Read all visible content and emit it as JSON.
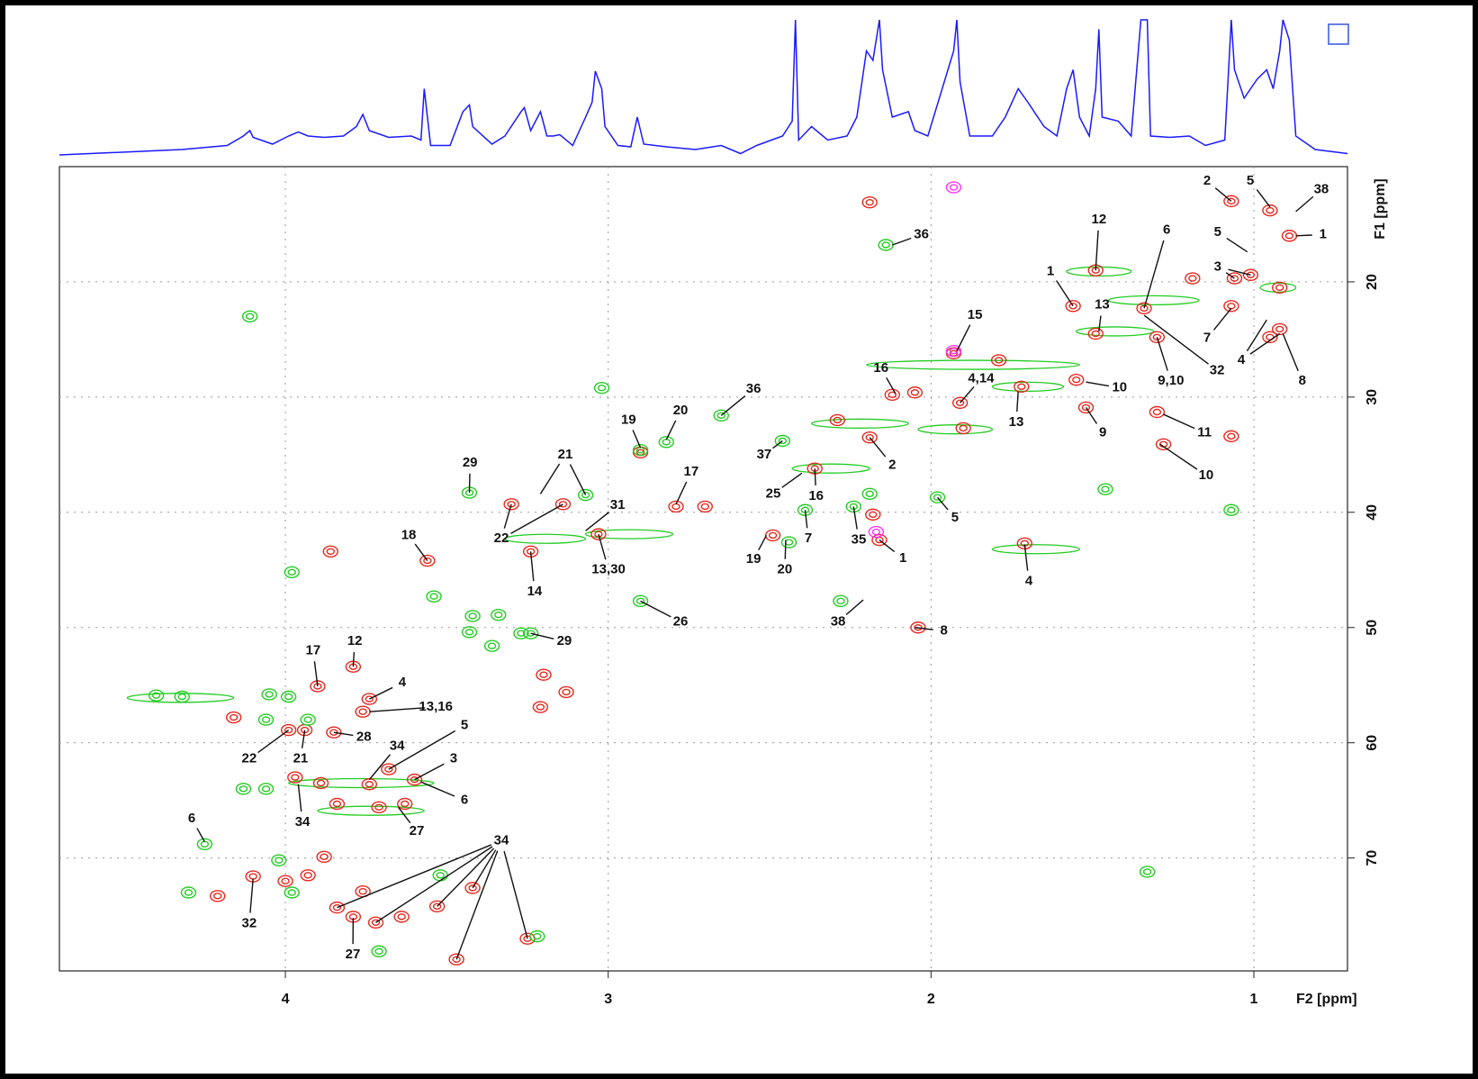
{
  "chart_data": {
    "type": "hsqc",
    "xlabel": "F2 [ppm]",
    "ylabel": "F1 [ppm]",
    "xlim": [
      4.7,
      0.71
    ],
    "ylim": [
      10,
      79.8
    ],
    "xticks": [
      4,
      3,
      2,
      1
    ],
    "yticks": [
      20,
      30,
      40,
      50,
      60,
      70
    ],
    "grid": true,
    "projection": {
      "color": "#1a1aff",
      "ylim": [
        0,
        100
      ],
      "x": [
        4.7,
        4.32,
        4.18,
        4.13,
        4.11,
        4.1,
        4.04,
        3.99,
        3.96,
        3.93,
        3.88,
        3.82,
        3.78,
        3.76,
        3.74,
        3.68,
        3.61,
        3.58,
        3.57,
        3.55,
        3.49,
        3.45,
        3.43,
        3.42,
        3.36,
        3.32,
        3.27,
        3.26,
        3.24,
        3.21,
        3.19,
        3.17,
        3.15,
        3.11,
        3.07,
        3.05,
        3.04,
        3.02,
        3.01,
        2.97,
        2.93,
        2.91,
        2.89,
        2.82,
        2.73,
        2.65,
        2.59,
        2.54,
        2.46,
        2.43,
        2.42,
        2.41,
        2.37,
        2.32,
        2.26,
        2.23,
        2.2,
        2.18,
        2.16,
        2.15,
        2.12,
        2.07,
        2.05,
        2.01,
        1.93,
        1.92,
        1.91,
        1.88,
        1.81,
        1.77,
        1.73,
        1.7,
        1.65,
        1.61,
        1.58,
        1.56,
        1.54,
        1.51,
        1.49,
        1.48,
        1.47,
        1.42,
        1.38,
        1.35,
        1.33,
        1.32,
        1.26,
        1.2,
        1.15,
        1.09,
        1.07,
        1.06,
        1.03,
        0.99,
        0.96,
        0.94,
        0.92,
        0.91,
        0.89,
        0.87,
        0.81,
        0.71
      ],
      "values": [
        0,
        4,
        7,
        14,
        18,
        13,
        8,
        14,
        17,
        14,
        13,
        14,
        21,
        30,
        18,
        13,
        14,
        11,
        49,
        7,
        7,
        32,
        37,
        21,
        8,
        14,
        32,
        35,
        18,
        32,
        14,
        14,
        15,
        7,
        28,
        39,
        62,
        49,
        21,
        7,
        6,
        28,
        8,
        6,
        4,
        7,
        1,
        7,
        14,
        25,
        100,
        11,
        21,
        11,
        14,
        28,
        77,
        70,
        100,
        63,
        28,
        32,
        18,
        14,
        77,
        100,
        54,
        14,
        14,
        28,
        49,
        39,
        21,
        14,
        49,
        63,
        28,
        14,
        49,
        93,
        28,
        25,
        14,
        100,
        100,
        14,
        13,
        14,
        7,
        11,
        100,
        63,
        42,
        56,
        63,
        49,
        77,
        100,
        85,
        14,
        4,
        1
      ]
    },
    "series": [
      {
        "color": "#e8261c",
        "x": [
          1.07,
          0.95,
          0.89,
          1.06,
          1.01,
          1.07,
          0.92,
          0.95,
          0.92,
          1.56,
          1.49,
          1.49,
          1.34,
          1.3,
          1.55,
          1.72,
          1.52,
          1.3,
          1.28,
          1.93,
          1.91,
          1.9,
          1.79,
          2.12,
          2.05,
          2.19,
          2.29,
          2.18,
          2.16,
          1.71,
          2.04,
          2.36,
          2.49,
          3.03,
          3.24,
          3.3,
          3.14,
          2.9,
          2.79,
          2.7,
          3.56,
          3.86,
          3.2,
          3.13,
          3.21,
          3.79,
          3.9,
          3.74,
          3.76,
          4.16,
          3.99,
          3.94,
          3.85,
          3.68,
          3.6,
          3.97,
          3.89,
          3.74,
          3.84,
          3.71,
          3.63,
          4.1,
          4.0,
          3.93,
          3.88,
          3.84,
          3.79,
          3.72,
          3.64,
          3.53,
          3.42,
          3.25,
          3.47,
          4.21,
          3.76,
          2.19,
          1.07,
          1.19
        ],
        "values": [
          13.0,
          13.8,
          16.0,
          19.7,
          19.4,
          22.1,
          20.5,
          24.8,
          24.1,
          22.1,
          19.0,
          24.5,
          22.3,
          24.8,
          28.5,
          29.1,
          30.9,
          31.3,
          34.1,
          26.2,
          30.5,
          32.7,
          26.8,
          29.8,
          29.6,
          33.5,
          32.0,
          40.2,
          42.4,
          42.7,
          50.0,
          36.2,
          42.0,
          41.9,
          43.4,
          39.3,
          39.3,
          34.8,
          39.5,
          39.5,
          44.2,
          43.4,
          54.1,
          55.6,
          56.9,
          53.4,
          55.1,
          56.2,
          57.3,
          57.8,
          58.9,
          58.9,
          59.1,
          62.3,
          63.2,
          63.0,
          63.5,
          63.6,
          65.3,
          65.6,
          65.3,
          71.6,
          72.0,
          71.5,
          69.9,
          74.3,
          75.1,
          75.6,
          75.1,
          74.2,
          72.6,
          77.0,
          78.8,
          73.3,
          72.9,
          13.1,
          33.4,
          19.7
        ]
      },
      {
        "color": "#22cc22",
        "x": [
          2.14,
          4.11,
          3.02,
          2.82,
          2.65,
          2.46,
          3.43,
          3.07,
          2.39,
          2.24,
          2.19,
          1.98,
          1.46,
          2.9,
          2.44,
          2.28,
          3.98,
          3.54,
          3.42,
          3.34,
          3.43,
          3.27,
          3.36,
          4.05,
          3.99,
          4.4,
          4.32,
          4.06,
          3.93,
          4.13,
          4.06,
          4.25,
          4.3,
          3.98,
          4.02,
          3.52,
          3.22,
          3.71,
          1.33,
          1.07,
          2.9,
          3.24
        ],
        "values": [
          16.8,
          23.0,
          29.2,
          33.9,
          31.6,
          33.8,
          38.3,
          38.5,
          39.8,
          39.5,
          38.4,
          38.7,
          38.0,
          47.7,
          42.6,
          47.7,
          45.2,
          47.3,
          49.0,
          48.9,
          50.4,
          50.5,
          51.6,
          55.8,
          56.0,
          55.9,
          56.0,
          58.0,
          58.0,
          64.0,
          64.0,
          68.8,
          73.0,
          73.0,
          70.2,
          71.5,
          76.8,
          78.1,
          71.2,
          39.8,
          34.6,
          50.5
        ]
      },
      {
        "color": "#ff33ff",
        "x": [
          1.93,
          1.93,
          2.17
        ],
        "values": [
          11.8,
          26.0,
          41.7
        ]
      }
    ],
    "streaks": {
      "color": "#22cc22",
      "x0": [
        3.07,
        3.32,
        2.43,
        1.81,
        1.58,
        1.55,
        1.45,
        2.2,
        1.81,
        4.49,
        3.99,
        3.9,
        2.04,
        2.37,
        0.98
      ],
      "x1": [
        2.8,
        3.07,
        2.19,
        1.59,
        1.38,
        1.31,
        1.17,
        1.54,
        1.54,
        4.16,
        3.54,
        3.57,
        1.81,
        2.07,
        0.87
      ],
      "y": [
        41.9,
        42.3,
        36.2,
        29.1,
        19.1,
        24.3,
        21.6,
        27.2,
        43.2,
        56.1,
        63.5,
        65.9,
        32.8,
        32.3,
        20.5
      ]
    },
    "annotations": [
      {
        "text": "2",
        "x": 1.145,
        "y": 11.25,
        "to": [
          [
            1.07,
            13.0
          ]
        ]
      },
      {
        "text": "5",
        "x": 1.011,
        "y": 11.25,
        "to": [
          [
            0.95,
            13.5
          ]
        ]
      },
      {
        "text": "38",
        "x": 0.791,
        "y": 12.0,
        "to": [
          [
            0.87,
            13.9
          ]
        ]
      },
      {
        "text": "1",
        "x": 0.786,
        "y": 15.9,
        "to": [
          [
            0.87,
            16.0
          ]
        ]
      },
      {
        "text": "5",
        "x": 1.112,
        "y": 15.7,
        "to": [
          [
            1.02,
            17.4
          ]
        ]
      },
      {
        "text": "3",
        "x": 1.112,
        "y": 18.7,
        "to": [
          [
            1.06,
            19.7
          ],
          [
            1.01,
            19.4
          ]
        ]
      },
      {
        "text": "7",
        "x": 1.145,
        "y": 24.9,
        "to": [
          [
            1.07,
            22.3
          ]
        ]
      },
      {
        "text": "4",
        "x": 1.039,
        "y": 26.8,
        "to": [
          [
            0.96,
            23.3
          ],
          [
            0.92,
            24.5
          ]
        ]
      },
      {
        "text": "8",
        "x": 0.85,
        "y": 28.6,
        "to": [
          [
            0.91,
            24.5
          ]
        ]
      },
      {
        "text": "12",
        "x": 1.48,
        "y": 14.6,
        "to": [
          [
            1.49,
            19.0
          ]
        ]
      },
      {
        "text": "6",
        "x": 1.27,
        "y": 15.5,
        "to": [
          [
            1.34,
            22.3
          ]
        ]
      },
      {
        "text": "1",
        "x": 1.63,
        "y": 19.1,
        "to": [
          [
            1.56,
            22.1
          ]
        ]
      },
      {
        "text": "13",
        "x": 1.47,
        "y": 22.0,
        "to": [
          [
            1.48,
            24.3
          ]
        ]
      },
      {
        "text": "32",
        "x": 1.114,
        "y": 27.7,
        "to": [
          [
            1.34,
            22.9
          ]
        ]
      },
      {
        "text": "9,10",
        "x": 1.257,
        "y": 28.6,
        "to": [
          [
            1.3,
            24.8
          ]
        ]
      },
      {
        "text": "10",
        "x": 1.416,
        "y": 29.2,
        "to": [
          [
            1.52,
            28.7
          ]
        ]
      },
      {
        "text": "13",
        "x": 1.736,
        "y": 32.2,
        "to": [
          [
            1.73,
            29.5
          ]
        ]
      },
      {
        "text": "9",
        "x": 1.468,
        "y": 33.1,
        "to": [
          [
            1.52,
            30.9
          ]
        ]
      },
      {
        "text": "11",
        "x": 1.153,
        "y": 33.1,
        "to": [
          [
            1.28,
            31.5
          ]
        ]
      },
      {
        "text": "10",
        "x": 1.148,
        "y": 36.8,
        "to": [
          [
            1.29,
            34.1
          ]
        ]
      },
      {
        "text": "15",
        "x": 1.864,
        "y": 22.9,
        "to": [
          [
            1.92,
            26.0
          ]
        ]
      },
      {
        "text": "4,14",
        "x": 1.845,
        "y": 28.4,
        "to": [
          [
            1.91,
            30.5
          ]
        ]
      },
      {
        "text": "36",
        "x": 2.03,
        "y": 15.9,
        "to": [
          [
            2.12,
            16.8
          ]
        ]
      },
      {
        "text": "16",
        "x": 2.155,
        "y": 27.5,
        "to": [
          [
            2.11,
            29.7
          ]
        ]
      },
      {
        "text": "2",
        "x": 2.12,
        "y": 35.9,
        "to": [
          [
            2.19,
            33.5
          ]
        ]
      },
      {
        "text": "5",
        "x": 1.926,
        "y": 40.5,
        "to": [
          [
            1.98,
            38.7
          ]
        ]
      },
      {
        "text": "1",
        "x": 2.087,
        "y": 44.0,
        "to": [
          [
            2.16,
            42.4
          ]
        ]
      },
      {
        "text": "35",
        "x": 2.224,
        "y": 42.4,
        "to": [
          [
            2.24,
            39.5
          ]
        ]
      },
      {
        "text": "8",
        "x": 1.96,
        "y": 50.3,
        "to": [
          [
            2.05,
            50.0
          ]
        ]
      },
      {
        "text": "4",
        "x": 1.697,
        "y": 46.0,
        "to": [
          [
            1.71,
            42.8
          ]
        ]
      },
      {
        "text": "38",
        "x": 2.288,
        "y": 49.5,
        "to": [
          [
            2.21,
            47.6
          ]
        ]
      },
      {
        "text": "37",
        "x": 2.517,
        "y": 35.0,
        "to": [
          [
            2.46,
            33.8
          ]
        ]
      },
      {
        "text": "25",
        "x": 2.489,
        "y": 38.4,
        "to": [
          [
            2.4,
            36.6
          ]
        ]
      },
      {
        "text": "16",
        "x": 2.356,
        "y": 38.6,
        "to": [
          [
            2.36,
            36.2
          ]
        ]
      },
      {
        "text": "7",
        "x": 2.38,
        "y": 42.3,
        "to": [
          [
            2.39,
            39.8
          ]
        ]
      },
      {
        "text": "19",
        "x": 2.55,
        "y": 44.1,
        "to": [
          [
            2.51,
            42.0
          ]
        ]
      },
      {
        "text": "20",
        "x": 2.453,
        "y": 45.0,
        "to": [
          [
            2.45,
            42.4
          ]
        ]
      },
      {
        "text": "36",
        "x": 2.55,
        "y": 29.3,
        "to": [
          [
            2.65,
            31.6
          ]
        ]
      },
      {
        "text": "19",
        "x": 2.937,
        "y": 32.0,
        "to": [
          [
            2.9,
            34.4
          ]
        ]
      },
      {
        "text": "20",
        "x": 2.776,
        "y": 31.2,
        "to": [
          [
            2.82,
            33.7
          ]
        ]
      },
      {
        "text": "17",
        "x": 2.743,
        "y": 36.5,
        "to": [
          [
            2.79,
            39.3
          ]
        ]
      },
      {
        "text": "21",
        "x": 3.133,
        "y": 35.0,
        "to": [
          [
            3.21,
            38.4
          ],
          [
            3.07,
            38.5
          ]
        ]
      },
      {
        "text": "22",
        "x": 3.331,
        "y": 42.3,
        "to": [
          [
            3.3,
            39.3
          ],
          [
            3.14,
            39.3
          ]
        ]
      },
      {
        "text": "31",
        "x": 2.971,
        "y": 39.4,
        "to": [
          [
            3.07,
            41.6
          ]
        ]
      },
      {
        "text": "13,30",
        "x": 2.999,
        "y": 45.0,
        "to": [
          [
            3.03,
            41.9
          ]
        ]
      },
      {
        "text": "14",
        "x": 3.228,
        "y": 46.9,
        "to": [
          [
            3.24,
            43.4
          ]
        ]
      },
      {
        "text": "29",
        "x": 3.428,
        "y": 35.7,
        "to": [
          [
            3.43,
            38.3
          ]
        ]
      },
      {
        "text": "18",
        "x": 3.618,
        "y": 42.0,
        "to": [
          [
            3.56,
            44.2
          ]
        ]
      },
      {
        "text": "26",
        "x": 2.776,
        "y": 49.5,
        "to": [
          [
            2.9,
            47.7
          ]
        ]
      },
      {
        "text": "29",
        "x": 3.136,
        "y": 51.2,
        "to": [
          [
            3.24,
            50.5
          ]
        ]
      },
      {
        "text": "17",
        "x": 3.914,
        "y": 52.0,
        "to": [
          [
            3.9,
            55.1
          ]
        ]
      },
      {
        "text": "12",
        "x": 3.785,
        "y": 51.2,
        "to": [
          [
            3.79,
            53.4
          ]
        ]
      },
      {
        "text": "4",
        "x": 3.638,
        "y": 54.8,
        "to": [
          [
            3.74,
            56.2
          ]
        ]
      },
      {
        "text": "13,16",
        "x": 3.534,
        "y": 56.9,
        "to": [
          [
            3.74,
            57.3
          ]
        ]
      },
      {
        "text": "22",
        "x": 4.112,
        "y": 61.4,
        "to": [
          [
            3.99,
            58.9
          ]
        ]
      },
      {
        "text": "21",
        "x": 3.953,
        "y": 61.4,
        "to": [
          [
            3.94,
            58.9
          ]
        ]
      },
      {
        "text": "28",
        "x": 3.757,
        "y": 59.5,
        "to": [
          [
            3.85,
            59.1
          ]
        ]
      },
      {
        "text": "34",
        "x": 3.654,
        "y": 60.3,
        "to": [
          [
            3.74,
            63.2
          ]
        ]
      },
      {
        "text": "5",
        "x": 3.445,
        "y": 58.5,
        "to": [
          [
            3.68,
            62.3
          ]
        ]
      },
      {
        "text": "3",
        "x": 3.479,
        "y": 61.4,
        "to": [
          [
            3.6,
            63.2
          ]
        ]
      },
      {
        "text": "6",
        "x": 3.445,
        "y": 65.0,
        "to": [
          [
            3.58,
            63.4
          ]
        ]
      },
      {
        "text": "34",
        "x": 3.947,
        "y": 66.9,
        "to": [
          [
            3.96,
            63.6
          ]
        ]
      },
      {
        "text": "27",
        "x": 3.593,
        "y": 67.7,
        "to": [
          [
            3.65,
            65.6
          ]
        ]
      },
      {
        "text": "6",
        "x": 4.29,
        "y": 66.6,
        "to": [
          [
            4.25,
            68.6
          ]
        ]
      },
      {
        "text": "34",
        "x": 3.331,
        "y": 68.5,
        "to": [
          [
            3.84,
            74.3
          ],
          [
            3.72,
            75.6
          ],
          [
            3.53,
            74.2
          ],
          [
            3.42,
            72.6
          ],
          [
            3.47,
            78.8
          ],
          [
            3.25,
            77.0
          ]
        ]
      },
      {
        "text": "32",
        "x": 4.112,
        "y": 75.7,
        "to": [
          [
            4.1,
            71.8
          ]
        ]
      },
      {
        "text": "27",
        "x": 3.791,
        "y": 78.4,
        "to": [
          [
            3.79,
            75.2
          ]
        ]
      }
    ]
  }
}
